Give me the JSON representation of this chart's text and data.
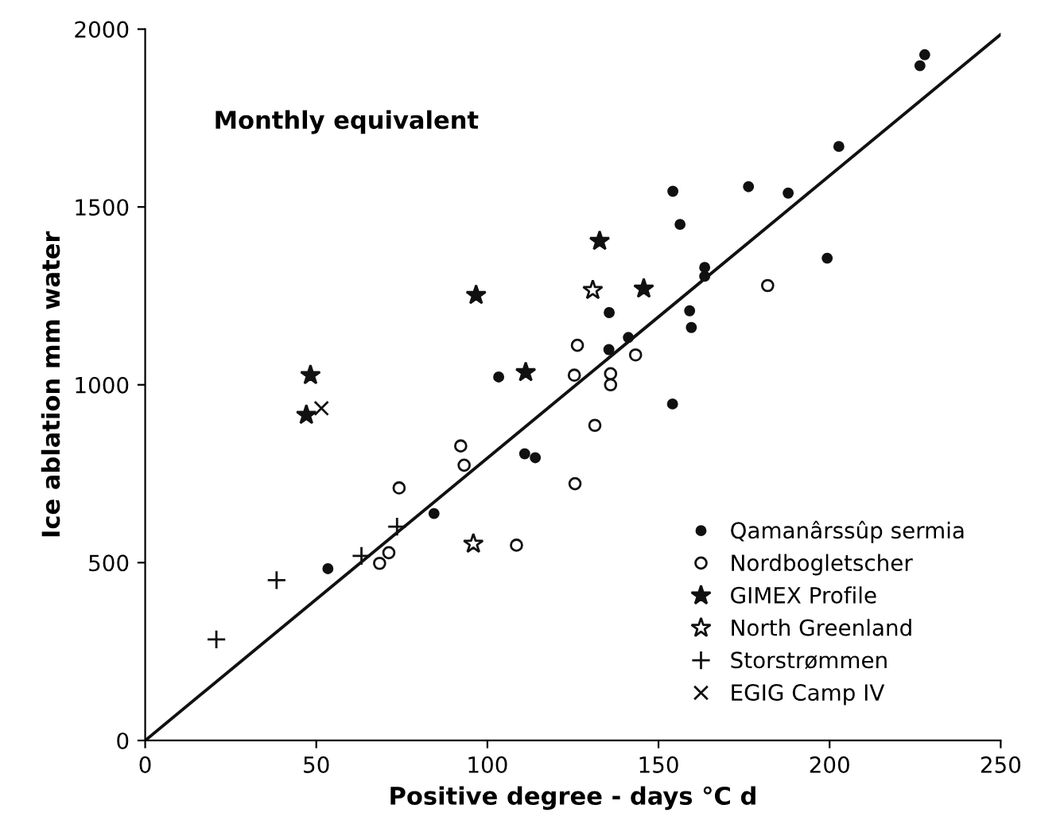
{
  "chart_data": {
    "type": "scatter",
    "xlabel": "Positive degree - days °C d",
    "ylabel": "Ice ablation mm water",
    "annotations": [
      "Monthly equivalent"
    ],
    "xlim": [
      0,
      250
    ],
    "xticks": [
      0,
      50,
      100,
      150,
      200,
      250
    ],
    "ylim": [
      0,
      2000
    ],
    "yticks": [
      0,
      500,
      1000,
      1500,
      2000
    ],
    "grid": false,
    "legend": "bottom right",
    "series": [
      {
        "name": "Qamanârssûp sermia",
        "color": "#111111",
        "marker": "circle",
        "x": [
          53.4,
          84.4,
          103.3,
          110.9,
          114,
          135.6,
          135.5,
          141.2,
          154.2,
          156.3,
          154.1,
          159.1,
          159.6,
          163.5,
          163.5,
          176.3,
          187.9,
          199.3,
          202.7,
          226.4,
          227.8
        ],
        "values": [
          483,
          638,
          1022,
          806,
          795,
          1203,
          1099,
          1133,
          1544,
          1451,
          946,
          1208,
          1161,
          1330,
          1305,
          1557,
          1539,
          1356,
          1670,
          1897,
          1928
        ]
      },
      {
        "name": "Nordbogletscher",
        "color": "#111111",
        "marker": "circle-open",
        "x": [
          68.5,
          71.2,
          74.2,
          92.2,
          93.2,
          108.5,
          125.6,
          131.4,
          125.4,
          126.3,
          136,
          136,
          143.3,
          181.9
        ],
        "values": [
          498,
          528,
          710,
          828,
          774,
          549,
          722,
          886,
          1027,
          1111,
          1031,
          1000,
          1084,
          1279
        ]
      },
      {
        "name": "GIMEX Profile",
        "color": "#111111",
        "marker": "star",
        "x": [
          48.3,
          47.1,
          96.7,
          111.2,
          132.8,
          145.7
        ],
        "values": [
          1027,
          915,
          1252,
          1035,
          1404,
          1270
        ]
      },
      {
        "name": "North Greenland",
        "color": "#111111",
        "marker": "star-open",
        "x": [
          95.9,
          130.8
        ],
        "values": [
          553,
          1266
        ]
      },
      {
        "name": "Storstrømmen",
        "color": "#111111",
        "marker": "plus",
        "x": [
          20.8,
          38.4,
          63.2,
          73.6
        ],
        "values": [
          284,
          451,
          519,
          601
        ]
      },
      {
        "name": "EGIG Camp IV",
        "color": "#111111",
        "marker": "x",
        "x": [
          51.5
        ],
        "values": [
          934
        ]
      },
      {
        "type": "line",
        "color": "#111111",
        "x": [
          0,
          250
        ],
        "values": [
          0,
          1985
        ]
      }
    ]
  }
}
